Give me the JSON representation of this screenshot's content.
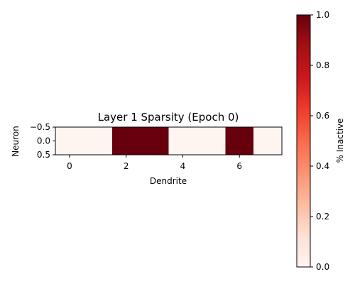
{
  "chart_data": {
    "type": "heatmap",
    "title": "Layer 1 Sparsity (Epoch 0)",
    "xlabel": "Dendrite",
    "ylabel": "Neuron",
    "x": [
      0,
      1,
      2,
      3,
      4,
      5,
      6,
      7
    ],
    "y": [
      0
    ],
    "values": [
      [
        0,
        0,
        1,
        1,
        0,
        0,
        1,
        0
      ]
    ],
    "xlim": [
      -0.5,
      7.5
    ],
    "ylim": [
      -0.5,
      0.5
    ],
    "x_ticks": [
      0,
      2,
      4,
      6
    ],
    "x_tick_labels": [
      "0",
      "2",
      "4",
      "6"
    ],
    "y_ticks": [
      -0.5,
      0.0,
      0.5
    ],
    "y_tick_labels": [
      "−0.5",
      "0.0",
      "0.5"
    ],
    "colormap": "Reds",
    "colorbar": {
      "label": "% Inactive",
      "range": [
        0,
        1
      ],
      "ticks": [
        0.0,
        0.2,
        0.4,
        0.6,
        0.8,
        1.0
      ],
      "tick_labels": [
        "0.0",
        "0.2",
        "0.4",
        "0.6",
        "0.8",
        "1.0"
      ]
    }
  }
}
